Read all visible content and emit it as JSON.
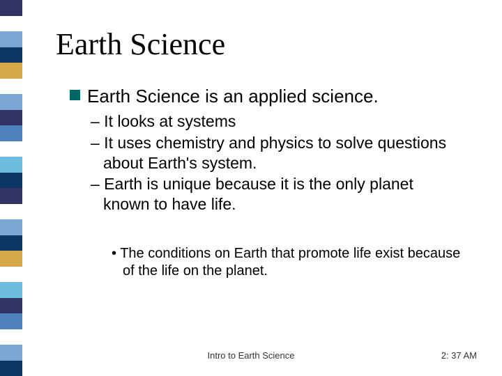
{
  "sidebar": {
    "stripe_colors": [
      "#333366",
      "#ffffff",
      "#7aa7d6",
      "#0a3766",
      "#d6a84a",
      "#ffffff",
      "#7aa7d6",
      "#333366",
      "#4f81bd",
      "#ffffff",
      "#6dbde0",
      "#0a3766",
      "#333366",
      "#ffffff",
      "#7aa7d6",
      "#0a3766",
      "#d6a84a",
      "#ffffff",
      "#6dbde0",
      "#333366",
      "#4f81bd",
      "#ffffff",
      "#7aa7d6",
      "#0a3766"
    ]
  },
  "title": {
    "text": "Earth Science",
    "fontsize": 44,
    "font_family": "Times New Roman",
    "color": "#000000"
  },
  "level1": {
    "bullet_color": "#006666",
    "bullet_size": 15,
    "text": "Earth Science is an applied science.",
    "fontsize": 26,
    "color": "#000000"
  },
  "level2": {
    "fontsize": 23,
    "color": "#000000",
    "items": [
      "– It looks at systems",
      "– It uses chemistry and physics to solve questions about Earth's system.",
      "– Earth is unique because it is the only planet known to have life."
    ]
  },
  "level3": {
    "fontsize": 20,
    "color": "#000000",
    "items": [
      "• The conditions on Earth that promote life exist because of the life on the planet."
    ]
  },
  "footer": {
    "center": "Intro to Earth Science",
    "right": "2: 37 AM",
    "fontsize": 13,
    "color": "#333333"
  },
  "background_color": "#ffffff"
}
